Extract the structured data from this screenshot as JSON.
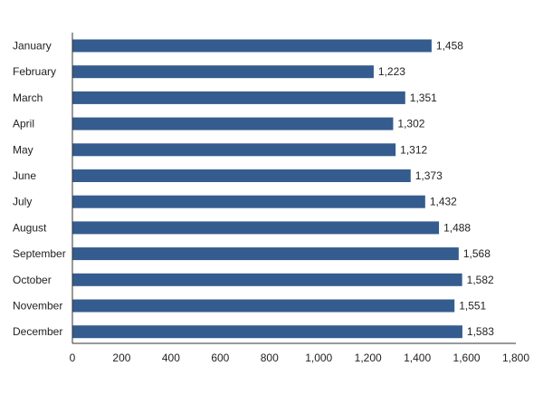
{
  "chart_data": {
    "type": "bar",
    "orientation": "horizontal",
    "categories": [
      "January",
      "February",
      "March",
      "April",
      "May",
      "June",
      "July",
      "August",
      "September",
      "October",
      "November",
      "December"
    ],
    "values": [
      1458,
      1223,
      1351,
      1302,
      1312,
      1373,
      1432,
      1488,
      1568,
      1582,
      1551,
      1583
    ],
    "value_labels": [
      "1,458",
      "1,223",
      "1,351",
      "1,302",
      "1,312",
      "1,373",
      "1,432",
      "1,488",
      "1,568",
      "1,582",
      "1,551",
      "1,583"
    ],
    "xticks": [
      "0",
      "200",
      "400",
      "600",
      "800",
      "1,000",
      "1,200",
      "1,400",
      "1,600",
      "1,800"
    ],
    "xlim": [
      0,
      1800
    ],
    "grid": false,
    "legend": "none",
    "bar_color": "#355c8e"
  }
}
